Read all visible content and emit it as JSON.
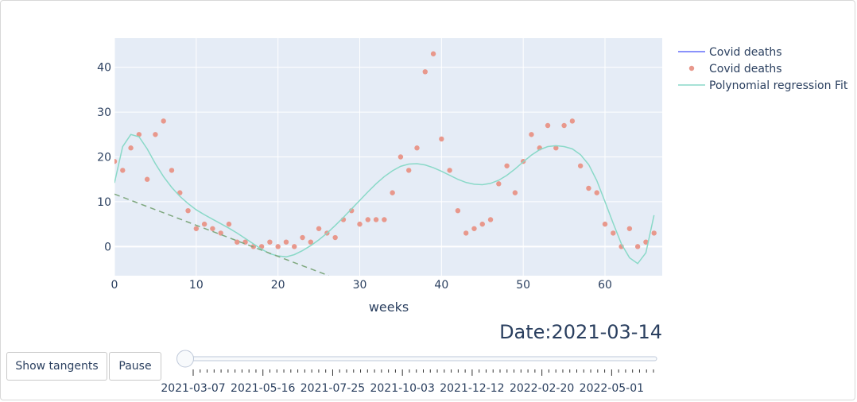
{
  "chart_data": {
    "type": "scatter",
    "title": "",
    "xlabel": "weeks",
    "ylabel": "",
    "xlim": [
      0,
      67
    ],
    "ylim": [
      -6.5,
      46.5
    ],
    "xticks": [
      0,
      10,
      20,
      30,
      40,
      50,
      60
    ],
    "yticks": [
      0,
      10,
      20,
      30,
      40
    ],
    "grid": true,
    "legend_position": "top-right",
    "series": [
      {
        "name": "Covid deaths",
        "kind": "line",
        "color": "#636efa",
        "x": [],
        "y": []
      },
      {
        "name": "Covid deaths",
        "kind": "markers",
        "color": "#e8988c",
        "x": [
          0,
          1,
          2,
          3,
          4,
          5,
          6,
          7,
          8,
          9,
          10,
          11,
          12,
          13,
          14,
          15,
          16,
          17,
          18,
          19,
          20,
          21,
          22,
          23,
          24,
          25,
          26,
          27,
          28,
          29,
          30,
          31,
          32,
          33,
          34,
          35,
          36,
          37,
          38,
          39,
          40,
          41,
          42,
          43,
          44,
          45,
          46,
          47,
          48,
          49,
          50,
          51,
          52,
          53,
          54,
          55,
          56,
          57,
          58,
          59,
          60,
          61,
          62,
          63,
          64,
          65,
          66
        ],
        "y": [
          19,
          17,
          22,
          25,
          15,
          25,
          28,
          17,
          12,
          8,
          4,
          5,
          4,
          3,
          5,
          1,
          1,
          0,
          0,
          1,
          0,
          1,
          0,
          2,
          1,
          4,
          3,
          2,
          6,
          8,
          5,
          6,
          6,
          6,
          12,
          20,
          17,
          22,
          39,
          43,
          24,
          17,
          8,
          3,
          4,
          5,
          6,
          14,
          18,
          12,
          19,
          25,
          22,
          27,
          22,
          27,
          28,
          18,
          13,
          12,
          5,
          3,
          0,
          4,
          0,
          1,
          3
        ]
      },
      {
        "name": "Polynomial regression Fit",
        "kind": "line",
        "color": "#8ad9c8",
        "x": [
          0,
          1,
          2,
          3,
          4,
          5,
          6,
          7,
          8,
          9,
          10,
          11,
          12,
          13,
          14,
          15,
          16,
          17,
          18,
          19,
          20,
          21,
          22,
          23,
          24,
          25,
          26,
          27,
          28,
          29,
          30,
          31,
          32,
          33,
          34,
          35,
          36,
          37,
          38,
          39,
          40,
          41,
          42,
          43,
          44,
          45,
          46,
          47,
          48,
          49,
          50,
          51,
          52,
          53,
          54,
          55,
          56,
          57,
          58,
          59,
          60,
          61,
          62,
          63,
          64,
          65,
          66
        ],
        "y": [
          14.2,
          22.3,
          25,
          24.5,
          21.8,
          18.5,
          15.6,
          13.2,
          11.2,
          9.6,
          8.2,
          7.1,
          6.1,
          5.1,
          4.1,
          3,
          1.8,
          0.6,
          -0.6,
          -1.6,
          -2.1,
          -2.3,
          -1.8,
          -0.9,
          0.2,
          1.5,
          3,
          4.7,
          6.5,
          8.4,
          10.3,
          12.2,
          14,
          15.6,
          16.9,
          17.9,
          18.4,
          18.5,
          18.2,
          17.6,
          16.8,
          15.9,
          15,
          14.3,
          13.9,
          13.8,
          14.1,
          14.8,
          15.9,
          17.3,
          18.9,
          20.4,
          21.6,
          22.3,
          22.5,
          22.3,
          21.8,
          20.5,
          18.3,
          14.7,
          10,
          5.2,
          0.6,
          -2.5,
          -3.8,
          -1.4,
          7
        ]
      },
      {
        "name": "tangent",
        "kind": "dashed-line",
        "color": "#7fa87f",
        "x": [
          0,
          26.2
        ],
        "y": [
          11.7,
          -6.5
        ]
      }
    ]
  },
  "date_label": "Date:2021-03-14",
  "controls": {
    "show_tangents_label": "Show tangents",
    "pause_label": "Pause",
    "slider_value": 0,
    "slider_date_labels": [
      "2021-03-07",
      "2021-05-16",
      "2021-07-25",
      "2021-10-03",
      "2021-12-12",
      "2022-02-20",
      "2022-05-01"
    ]
  }
}
